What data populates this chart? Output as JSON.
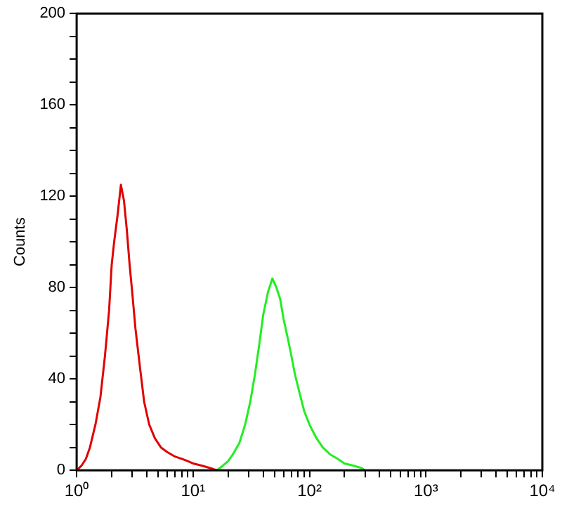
{
  "chart_data": {
    "type": "line",
    "ylabel": "Counts",
    "log": "x",
    "grid": false,
    "legend": false,
    "marker": "none",
    "line_style": "solid",
    "xlim": [
      1,
      10000
    ],
    "ylim": [
      0,
      200
    ],
    "xticks": [
      {
        "value": 1,
        "label": "10⁰"
      },
      {
        "value": 2,
        "label": null
      },
      {
        "value": 3,
        "label": null
      },
      {
        "value": 4,
        "label": null
      },
      {
        "value": 5,
        "label": null
      },
      {
        "value": 6,
        "label": null
      },
      {
        "value": 7,
        "label": null
      },
      {
        "value": 8,
        "label": null
      },
      {
        "value": 9,
        "label": null
      },
      {
        "value": 10,
        "label": "10¹"
      },
      {
        "value": 20,
        "label": null
      },
      {
        "value": 30,
        "label": null
      },
      {
        "value": 40,
        "label": null
      },
      {
        "value": 50,
        "label": null
      },
      {
        "value": 60,
        "label": null
      },
      {
        "value": 70,
        "label": null
      },
      {
        "value": 80,
        "label": null
      },
      {
        "value": 90,
        "label": null
      },
      {
        "value": 100,
        "label": "10²"
      },
      {
        "value": 200,
        "label": null
      },
      {
        "value": 300,
        "label": null
      },
      {
        "value": 400,
        "label": null
      },
      {
        "value": 500,
        "label": null
      },
      {
        "value": 600,
        "label": null
      },
      {
        "value": 700,
        "label": null
      },
      {
        "value": 800,
        "label": null
      },
      {
        "value": 900,
        "label": null
      },
      {
        "value": 1000,
        "label": "10³"
      },
      {
        "value": 2000,
        "label": null
      },
      {
        "value": 3000,
        "label": null
      },
      {
        "value": 4000,
        "label": null
      },
      {
        "value": 5000,
        "label": null
      },
      {
        "value": 6000,
        "label": null
      },
      {
        "value": 7000,
        "label": null
      },
      {
        "value": 8000,
        "label": null
      },
      {
        "value": 9000,
        "label": null
      },
      {
        "value": 10000,
        "label": "10⁴"
      }
    ],
    "yticks": [
      0,
      {
        "value": 10,
        "label": null
      },
      {
        "value": 20,
        "label": null
      },
      {
        "value": 30,
        "label": null
      },
      40,
      {
        "value": 50,
        "label": null
      },
      {
        "value": 60,
        "label": null
      },
      {
        "value": 70,
        "label": null
      },
      80,
      {
        "value": 90,
        "label": null
      },
      {
        "value": 100,
        "label": null
      },
      {
        "value": 110,
        "label": null
      },
      120,
      {
        "value": 130,
        "label": null
      },
      {
        "value": 140,
        "label": null
      },
      {
        "value": 150,
        "label": null
      },
      160,
      {
        "value": 170,
        "label": null
      },
      {
        "value": 180,
        "label": null
      },
      {
        "value": 190,
        "label": null
      },
      200
    ],
    "series": [
      {
        "color": "#e00000",
        "x": [
          1.0,
          1.1,
          1.2,
          1.3,
          1.45,
          1.6,
          1.75,
          1.9,
          2.0,
          2.1,
          2.25,
          2.4,
          2.55,
          2.7,
          2.85,
          3.0,
          3.2,
          3.5,
          3.8,
          4.2,
          4.7,
          5.3,
          6,
          7,
          8,
          9,
          10,
          12,
          14,
          16
        ],
        "values": [
          0,
          2,
          5,
          10,
          20,
          32,
          50,
          70,
          90,
          100,
          112,
          125,
          118,
          105,
          90,
          78,
          62,
          45,
          30,
          20,
          14,
          10,
          8,
          6,
          5,
          4,
          3,
          2,
          1,
          0
        ]
      },
      {
        "color": "#22ee22",
        "x": [
          16,
          18,
          20,
          22,
          25,
          28,
          31,
          34,
          37,
          40,
          44,
          48,
          52,
          56,
          60,
          65,
          70,
          75,
          82,
          90,
          100,
          115,
          130,
          150,
          175,
          200,
          240,
          280,
          300
        ],
        "values": [
          0,
          2,
          4,
          7,
          12,
          20,
          30,
          42,
          55,
          68,
          78,
          84,
          80,
          75,
          66,
          58,
          50,
          42,
          34,
          26,
          20,
          14,
          10,
          7,
          5,
          3,
          2,
          1,
          0
        ]
      }
    ]
  }
}
